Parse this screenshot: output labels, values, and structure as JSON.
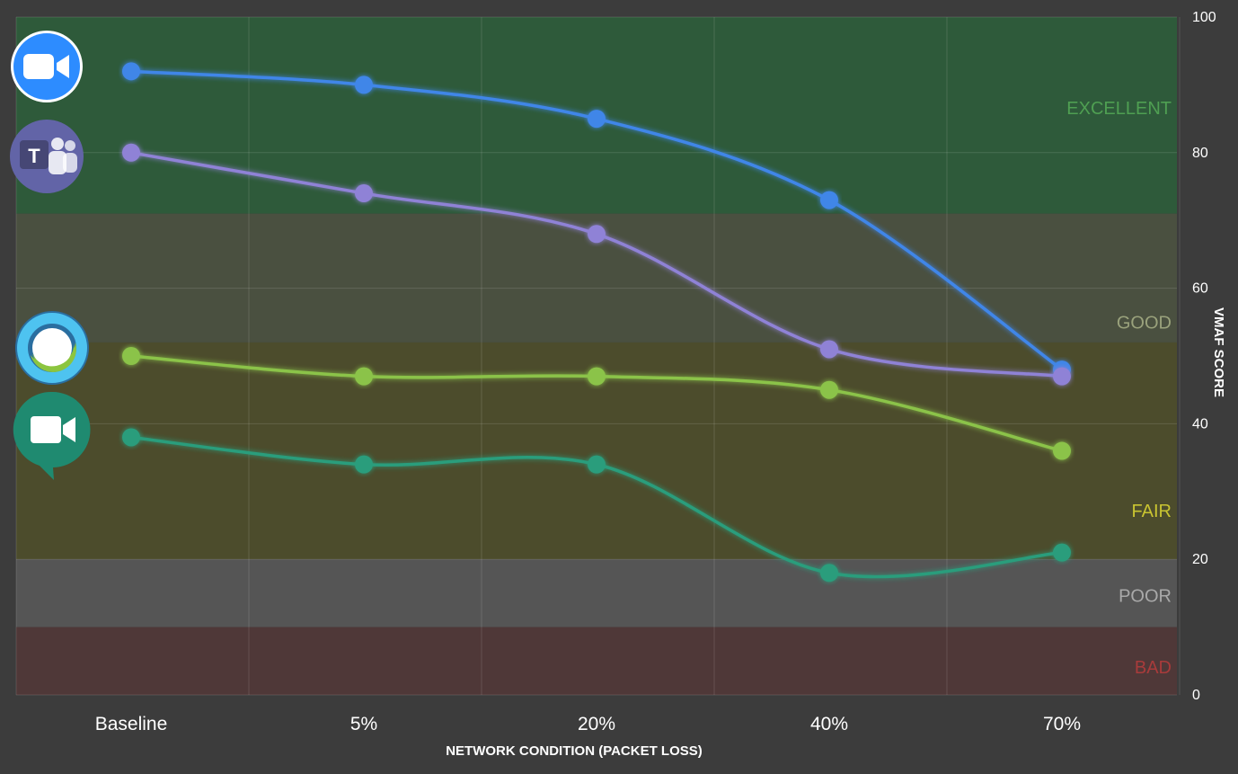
{
  "chart_data": {
    "type": "line",
    "xlabel": "NETWORK CONDITION (PACKET LOSS)",
    "ylabel": "VMAF SCORE",
    "categories": [
      "Baseline",
      "5%",
      "20%",
      "40%",
      "70%"
    ],
    "ylim": [
      0,
      100
    ],
    "yticks": [
      0,
      20,
      40,
      60,
      80,
      100
    ],
    "grid": true,
    "series": [
      {
        "icon": "zoom-icon",
        "color": "#3f86e8",
        "values": [
          92,
          90,
          85,
          73,
          48
        ]
      },
      {
        "icon": "teams-icon",
        "color": "#8f82d6",
        "values": [
          80,
          74,
          68,
          51,
          47
        ]
      },
      {
        "icon": "webex-icon",
        "color": "#8bc34a",
        "values": [
          50,
          47,
          47,
          45,
          36
        ]
      },
      {
        "icon": "google-meet-icon",
        "color": "#2a9d7c",
        "values": [
          38,
          34,
          34,
          18,
          21
        ]
      }
    ],
    "quality_bands": [
      {
        "label": "EXCELLENT",
        "from": 71,
        "to": 100,
        "fill": "#2e5a3a",
        "text_color": "#4f9f52"
      },
      {
        "label": "GOOD",
        "from": 52,
        "to": 71,
        "fill": "#4a5040",
        "text_color": "#9aa27c"
      },
      {
        "label": "FAIR",
        "from": 20,
        "to": 52,
        "fill": "#4c4c2c",
        "text_color": "#c9c431"
      },
      {
        "label": "POOR",
        "from": 10,
        "to": 20,
        "fill": "#555555",
        "text_color": "#a9a9a9"
      },
      {
        "label": "BAD",
        "from": 0,
        "to": 10,
        "fill": "#4f3838",
        "text_color": "#a83b3b"
      }
    ]
  }
}
